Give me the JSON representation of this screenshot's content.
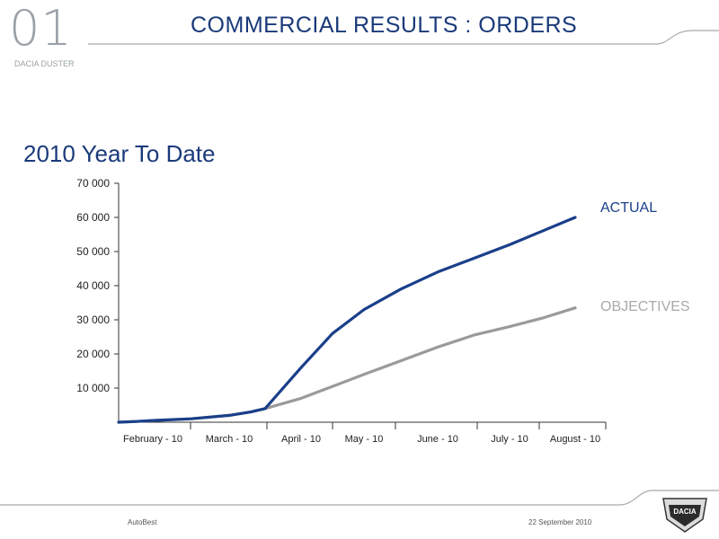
{
  "header": {
    "section_number": "01",
    "subtitle": "DACIA DUSTER",
    "title": "COMMERCIAL RESULTS : ORDERS"
  },
  "chart_heading": "2010 Year To Date",
  "footer": {
    "left": "AutoBest",
    "right": "22 September 2010",
    "logo_text": "DACIA"
  },
  "colors": {
    "actual": "#1a3f8a",
    "objectives": "#9a9a9a",
    "title": "#1a3a7a"
  },
  "chart_data": {
    "type": "line",
    "title": "2010 Year To Date",
    "categories": [
      "February - 10",
      "March - 10",
      "April - 10",
      "May - 10",
      "June - 10",
      "July - 10",
      "August - 10"
    ],
    "y_tick_labels": [
      "10 000",
      "20 000",
      "30 000",
      "40 000",
      "50 000",
      "60 000",
      "70 000"
    ],
    "ylim": [
      0,
      70000
    ],
    "grid": false,
    "series": [
      {
        "name": "ACTUAL",
        "x": [
          -1.0,
          -0.5,
          0.0,
          0.5,
          1.0,
          1.3,
          1.5,
          2.0,
          2.5,
          3.0,
          3.5,
          4.0,
          4.5,
          5.0,
          5.5,
          6.0
        ],
        "values": [
          0,
          200,
          500,
          1000,
          2000,
          3000,
          4000,
          16000,
          26000,
          33000,
          39000,
          44000,
          48000,
          52000,
          56000,
          60000
        ]
      },
      {
        "name": "OBJECTIVES",
        "x": [
          -1.0,
          -0.5,
          0.0,
          0.5,
          1.0,
          1.3,
          1.5,
          2.0,
          2.5,
          3.0,
          3.5,
          4.0,
          4.5,
          5.0,
          5.5,
          6.0
        ],
        "values": [
          0,
          200,
          500,
          1000,
          2000,
          3000,
          4000,
          7000,
          10500,
          14000,
          18000,
          22000,
          25500,
          28000,
          30500,
          33500
        ]
      }
    ]
  }
}
